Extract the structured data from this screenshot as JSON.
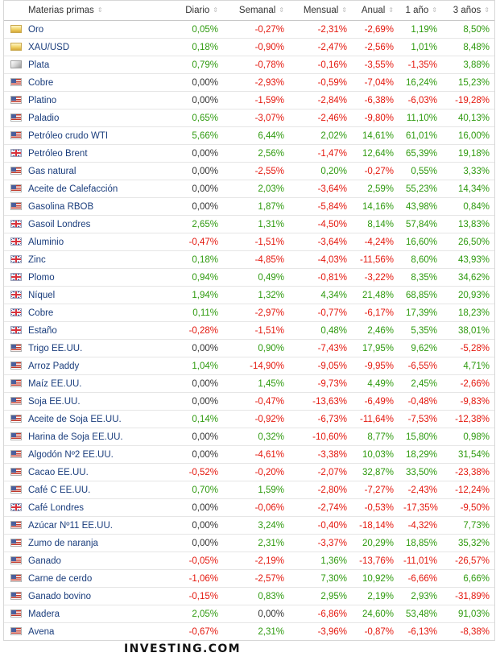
{
  "headers": [
    "Materias primas",
    "Diario",
    "Semanal",
    "Mensual",
    "Anual",
    "1 año",
    "3 años"
  ],
  "rows": [
    {
      "flag": "gold",
      "name": "Oro",
      "values": [
        "0,05%",
        "-0,27%",
        "-2,31%",
        "-2,69%",
        "1,19%",
        "8,50%"
      ]
    },
    {
      "flag": "gold",
      "name": "XAU/USD",
      "values": [
        "0,18%",
        "-0,90%",
        "-2,47%",
        "-2,56%",
        "1,01%",
        "8,48%"
      ]
    },
    {
      "flag": "silver",
      "name": "Plata",
      "values": [
        "0,79%",
        "-0,78%",
        "-0,16%",
        "-3,55%",
        "-1,35%",
        "3,88%"
      ]
    },
    {
      "flag": "us",
      "name": "Cobre",
      "values": [
        "0,00%",
        "-2,93%",
        "-0,59%",
        "-7,04%",
        "16,24%",
        "15,23%"
      ]
    },
    {
      "flag": "us",
      "name": "Platino",
      "values": [
        "0,00%",
        "-1,59%",
        "-2,84%",
        "-6,38%",
        "-6,03%",
        "-19,28%"
      ]
    },
    {
      "flag": "us",
      "name": "Paladio",
      "values": [
        "0,65%",
        "-3,07%",
        "-2,46%",
        "-9,80%",
        "11,10%",
        "40,13%"
      ]
    },
    {
      "flag": "us",
      "name": "Petróleo crudo WTI",
      "values": [
        "5,66%",
        "6,44%",
        "2,02%",
        "14,61%",
        "61,01%",
        "16,00%"
      ]
    },
    {
      "flag": "gb",
      "name": "Petróleo Brent",
      "values": [
        "0,00%",
        "2,56%",
        "-1,47%",
        "12,64%",
        "65,39%",
        "19,18%"
      ]
    },
    {
      "flag": "us",
      "name": "Gas natural",
      "values": [
        "0,00%",
        "-2,55%",
        "0,20%",
        "-0,27%",
        "0,55%",
        "3,33%"
      ]
    },
    {
      "flag": "us",
      "name": "Aceite de Calefacción",
      "values": [
        "0,00%",
        "2,03%",
        "-3,64%",
        "2,59%",
        "55,23%",
        "14,34%"
      ]
    },
    {
      "flag": "us",
      "name": "Gasolina RBOB",
      "values": [
        "0,00%",
        "1,87%",
        "-5,84%",
        "14,16%",
        "43,98%",
        "0,84%"
      ]
    },
    {
      "flag": "gb",
      "name": "Gasoil Londres",
      "values": [
        "2,65%",
        "1,31%",
        "-4,50%",
        "8,14%",
        "57,84%",
        "13,83%"
      ]
    },
    {
      "flag": "gb",
      "name": "Aluminio",
      "values": [
        "-0,47%",
        "-1,51%",
        "-3,64%",
        "-4,24%",
        "16,60%",
        "26,50%"
      ]
    },
    {
      "flag": "gb",
      "name": "Zinc",
      "values": [
        "0,18%",
        "-4,85%",
        "-4,03%",
        "-11,56%",
        "8,60%",
        "43,93%"
      ]
    },
    {
      "flag": "gb",
      "name": "Plomo",
      "values": [
        "0,94%",
        "0,49%",
        "-0,81%",
        "-3,22%",
        "8,35%",
        "34,62%"
      ]
    },
    {
      "flag": "gb",
      "name": "Níquel",
      "values": [
        "1,94%",
        "1,32%",
        "4,34%",
        "21,48%",
        "68,85%",
        "20,93%"
      ]
    },
    {
      "flag": "gb",
      "name": "Cobre",
      "values": [
        "0,11%",
        "-2,97%",
        "-0,77%",
        "-6,17%",
        "17,39%",
        "18,23%"
      ]
    },
    {
      "flag": "gb",
      "name": "Estaño",
      "values": [
        "-0,28%",
        "-1,51%",
        "0,48%",
        "2,46%",
        "5,35%",
        "38,01%"
      ]
    },
    {
      "flag": "us",
      "name": "Trigo EE.UU.",
      "values": [
        "0,00%",
        "0,90%",
        "-7,43%",
        "17,95%",
        "9,62%",
        "-5,28%"
      ]
    },
    {
      "flag": "us",
      "name": "Arroz Paddy",
      "values": [
        "1,04%",
        "-14,90%",
        "-9,05%",
        "-9,95%",
        "-6,55%",
        "4,71%"
      ]
    },
    {
      "flag": "us",
      "name": "Maíz EE.UU.",
      "values": [
        "0,00%",
        "1,45%",
        "-9,73%",
        "4,49%",
        "2,45%",
        "-2,66%"
      ]
    },
    {
      "flag": "us",
      "name": "Soja EE.UU.",
      "values": [
        "0,00%",
        "-0,47%",
        "-13,63%",
        "-6,49%",
        "-0,48%",
        "-9,83%"
      ]
    },
    {
      "flag": "us",
      "name": "Aceite de Soja EE.UU.",
      "values": [
        "0,14%",
        "-0,92%",
        "-6,73%",
        "-11,64%",
        "-7,53%",
        "-12,38%"
      ]
    },
    {
      "flag": "us",
      "name": "Harina de Soja EE.UU.",
      "values": [
        "0,00%",
        "0,32%",
        "-10,60%",
        "8,77%",
        "15,80%",
        "0,98%"
      ]
    },
    {
      "flag": "us",
      "name": "Algodón Nº2 EE.UU.",
      "values": [
        "0,00%",
        "-4,61%",
        "-3,38%",
        "10,03%",
        "18,29%",
        "31,54%"
      ]
    },
    {
      "flag": "us",
      "name": "Cacao EE.UU.",
      "values": [
        "-0,52%",
        "-0,20%",
        "-2,07%",
        "32,87%",
        "33,50%",
        "-23,38%"
      ]
    },
    {
      "flag": "us",
      "name": "Café C EE.UU.",
      "values": [
        "0,70%",
        "1,59%",
        "-2,80%",
        "-7,27%",
        "-2,43%",
        "-12,24%"
      ]
    },
    {
      "flag": "gb",
      "name": "Café Londres",
      "values": [
        "0,00%",
        "-0,06%",
        "-2,74%",
        "-0,53%",
        "-17,35%",
        "-9,50%"
      ]
    },
    {
      "flag": "us",
      "name": "Azúcar Nº11 EE.UU.",
      "values": [
        "0,00%",
        "3,24%",
        "-0,40%",
        "-18,14%",
        "-4,32%",
        "7,73%"
      ]
    },
    {
      "flag": "us",
      "name": "Zumo de naranja",
      "values": [
        "0,00%",
        "2,31%",
        "-3,37%",
        "20,29%",
        "18,85%",
        "35,32%"
      ]
    },
    {
      "flag": "us",
      "name": "Ganado",
      "values": [
        "-0,05%",
        "-2,19%",
        "1,36%",
        "-13,76%",
        "-11,01%",
        "-26,57%"
      ]
    },
    {
      "flag": "us",
      "name": "Carne de cerdo",
      "values": [
        "-1,06%",
        "-2,57%",
        "7,30%",
        "10,92%",
        "-6,66%",
        "6,66%"
      ]
    },
    {
      "flag": "us",
      "name": "Ganado bovino",
      "values": [
        "-0,15%",
        "0,83%",
        "2,95%",
        "2,19%",
        "2,93%",
        "-31,89%"
      ]
    },
    {
      "flag": "us",
      "name": "Madera",
      "values": [
        "2,05%",
        "0,00%",
        "-6,86%",
        "24,60%",
        "53,48%",
        "91,03%"
      ]
    },
    {
      "flag": "us",
      "name": "Avena",
      "values": [
        "-0,67%",
        "2,31%",
        "-3,96%",
        "-0,87%",
        "-6,13%",
        "-8,38%"
      ]
    }
  ],
  "brand": "INVESTING.COM",
  "colors": {
    "positive": "#2e9a0e",
    "negative": "#e4170d",
    "neutral": "#333333",
    "link": "#1a3d7c"
  }
}
